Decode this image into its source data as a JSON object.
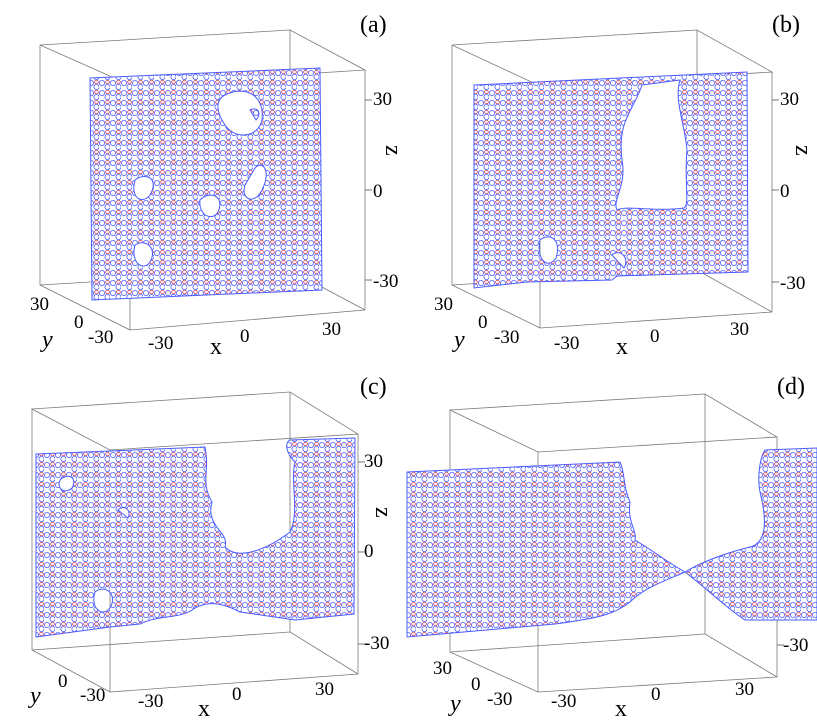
{
  "panels": [
    {
      "label": "(a)",
      "x_ticks": [
        "-30",
        "0",
        "30"
      ],
      "y_ticks": [
        "30",
        "0",
        "-30"
      ],
      "z_ticks": [
        "30",
        "0",
        "-30"
      ],
      "x_label": "x",
      "y_label": "y",
      "z_label": "z",
      "state": "porous slab with several small holes"
    },
    {
      "label": "(b)",
      "x_ticks": [
        "-30",
        "0",
        "30"
      ],
      "y_ticks": [
        "30",
        "0",
        "-30"
      ],
      "z_ticks": [
        "30",
        "0",
        "-30"
      ],
      "x_label": "x",
      "y_label": "y",
      "z_label": "z",
      "state": "large hole opening in upper right"
    },
    {
      "label": "(c)",
      "x_ticks": [
        "-30",
        "0",
        "30"
      ],
      "y_ticks": [
        "30",
        "0",
        "-30"
      ],
      "z_ticks": [
        "30",
        "0",
        "-30"
      ],
      "x_label": "x",
      "y_label": "y",
      "z_label": "z",
      "state": "neck forming between two parts"
    },
    {
      "label": "(d)",
      "x_ticks": [
        "-30",
        "0",
        "30"
      ],
      "y_ticks": [
        "30",
        "0",
        "-30"
      ],
      "z_ticks": [
        "-30"
      ],
      "x_label": "x",
      "y_label": "y",
      "z_label": "",
      "state": "thin neck about to break"
    }
  ],
  "colors": {
    "particle_outline_primary": "#4a5cff",
    "particle_outline_secondary": "#d21e3c",
    "box_lines": "#7a7a7a",
    "background": "#ffffff"
  }
}
